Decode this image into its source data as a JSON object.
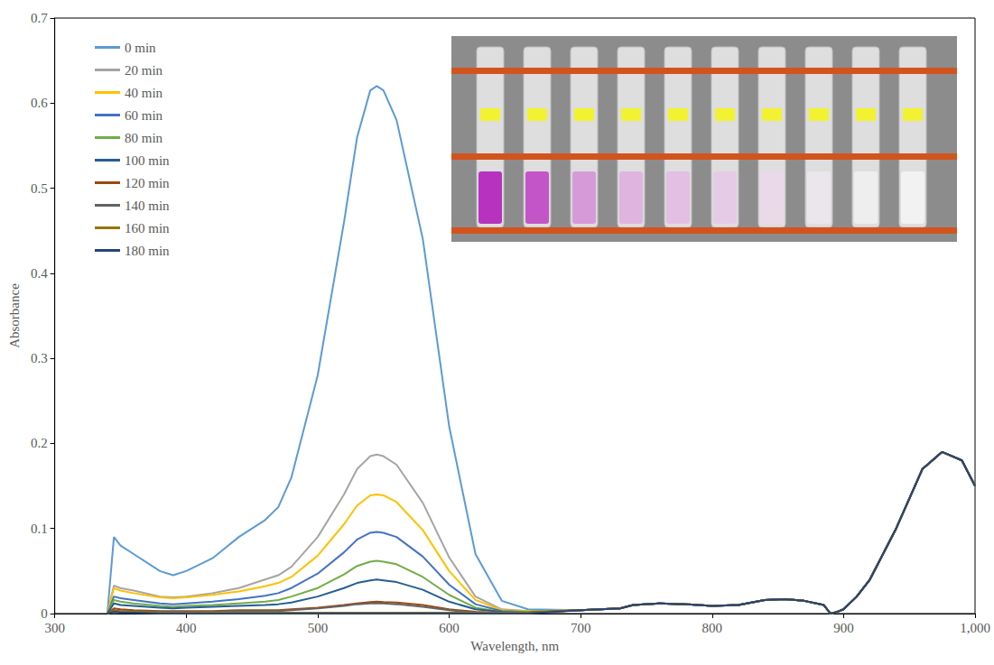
{
  "chart_data": {
    "type": "line",
    "x_label": "Wavelength, nm",
    "y_label": "Absorbance",
    "xlim": [
      300,
      1000
    ],
    "ylim": [
      0,
      0.7
    ],
    "xticks": [
      300,
      400,
      500,
      600,
      700,
      800,
      900,
      1000
    ],
    "yticks": [
      0,
      0.1,
      0.2,
      0.3,
      0.4,
      0.5,
      0.6,
      0.7
    ],
    "grid": false,
    "legend": "upper left",
    "x": [
      340,
      345,
      350,
      360,
      380,
      390,
      400,
      420,
      440,
      460,
      470,
      480,
      500,
      520,
      530,
      540,
      545,
      550,
      560,
      580,
      600,
      620,
      640,
      660,
      700,
      730,
      740,
      760,
      780,
      800,
      820,
      840,
      855,
      870,
      885,
      890,
      895,
      900,
      910,
      920,
      940,
      960,
      975,
      990,
      1000
    ],
    "series": [
      {
        "name": "0 min",
        "color": "#5b9bd5",
        "values": [
          0,
          0.09,
          0.08,
          0.07,
          0.05,
          0.045,
          0.05,
          0.065,
          0.09,
          0.11,
          0.125,
          0.16,
          0.28,
          0.46,
          0.56,
          0.615,
          0.62,
          0.615,
          0.58,
          0.44,
          0.22,
          0.07,
          0.015,
          0.005,
          0.004,
          0.006,
          0.01,
          0.012,
          0.011,
          0.009,
          0.01,
          0.016,
          0.017,
          0.015,
          0.01,
          0,
          0.002,
          0.005,
          0.02,
          0.04,
          0.1,
          0.17,
          0.19,
          0.18,
          0.15
        ]
      },
      {
        "name": "20 min",
        "color": "#a5a5a5",
        "values": [
          0,
          0.033,
          0.03,
          0.027,
          0.02,
          0.019,
          0.02,
          0.024,
          0.03,
          0.04,
          0.045,
          0.055,
          0.09,
          0.14,
          0.17,
          0.185,
          0.187,
          0.185,
          0.175,
          0.13,
          0.066,
          0.02,
          0.005,
          0.003,
          0.004,
          0.006,
          0.01,
          0.012,
          0.011,
          0.009,
          0.01,
          0.016,
          0.017,
          0.015,
          0.01,
          0,
          0.002,
          0.005,
          0.02,
          0.04,
          0.1,
          0.17,
          0.19,
          0.18,
          0.15
        ]
      },
      {
        "name": "40 min",
        "color": "#ffc000",
        "values": [
          0,
          0.03,
          0.027,
          0.024,
          0.019,
          0.018,
          0.019,
          0.022,
          0.026,
          0.032,
          0.036,
          0.043,
          0.068,
          0.105,
          0.127,
          0.139,
          0.14,
          0.139,
          0.131,
          0.098,
          0.05,
          0.016,
          0.004,
          0.003,
          0.004,
          0.006,
          0.01,
          0.012,
          0.011,
          0.009,
          0.01,
          0.016,
          0.017,
          0.015,
          0.01,
          0,
          0.002,
          0.005,
          0.02,
          0.04,
          0.1,
          0.17,
          0.19,
          0.18,
          0.15
        ]
      },
      {
        "name": "60 min",
        "color": "#4472c4",
        "values": [
          0,
          0.02,
          0.018,
          0.016,
          0.012,
          0.011,
          0.012,
          0.014,
          0.017,
          0.021,
          0.024,
          0.03,
          0.047,
          0.072,
          0.087,
          0.095,
          0.096,
          0.095,
          0.09,
          0.067,
          0.034,
          0.011,
          0.003,
          0.002,
          0.004,
          0.006,
          0.01,
          0.012,
          0.011,
          0.009,
          0.01,
          0.016,
          0.017,
          0.015,
          0.01,
          0,
          0.002,
          0.005,
          0.02,
          0.04,
          0.1,
          0.17,
          0.19,
          0.18,
          0.15
        ]
      },
      {
        "name": "80 min",
        "color": "#70ad47",
        "values": [
          0,
          0.016,
          0.014,
          0.012,
          0.009,
          0.008,
          0.009,
          0.01,
          0.012,
          0.014,
          0.016,
          0.02,
          0.03,
          0.046,
          0.056,
          0.061,
          0.062,
          0.061,
          0.058,
          0.043,
          0.022,
          0.007,
          0.002,
          0.002,
          0.004,
          0.006,
          0.01,
          0.012,
          0.011,
          0.009,
          0.01,
          0.016,
          0.017,
          0.015,
          0.01,
          0,
          0.002,
          0.005,
          0.02,
          0.04,
          0.1,
          0.17,
          0.19,
          0.18,
          0.15
        ]
      },
      {
        "name": "100 min",
        "color": "#255e91",
        "values": [
          0,
          0.012,
          0.01,
          0.009,
          0.007,
          0.006,
          0.007,
          0.008,
          0.009,
          0.01,
          0.011,
          0.013,
          0.02,
          0.03,
          0.036,
          0.039,
          0.04,
          0.039,
          0.037,
          0.028,
          0.014,
          0.005,
          0.002,
          0.001,
          0.004,
          0.006,
          0.01,
          0.012,
          0.011,
          0.009,
          0.01,
          0.016,
          0.017,
          0.015,
          0.01,
          0,
          0.002,
          0.005,
          0.02,
          0.04,
          0.1,
          0.17,
          0.19,
          0.18,
          0.15
        ]
      },
      {
        "name": "120 min",
        "color": "#9e480e",
        "values": [
          0,
          0.006,
          0.005,
          0.004,
          0.003,
          0.003,
          0.003,
          0.003,
          0.004,
          0.004,
          0.004,
          0.005,
          0.007,
          0.01,
          0.012,
          0.0135,
          0.014,
          0.0135,
          0.013,
          0.01,
          0.005,
          0.002,
          0.001,
          0.001,
          0.004,
          0.006,
          0.01,
          0.012,
          0.011,
          0.009,
          0.01,
          0.016,
          0.017,
          0.015,
          0.01,
          0,
          0.002,
          0.005,
          0.02,
          0.04,
          0.1,
          0.17,
          0.19,
          0.18,
          0.15
        ]
      },
      {
        "name": "140 min",
        "color": "#636363",
        "values": [
          0,
          0.004,
          0.003,
          0.003,
          0.002,
          0.002,
          0.002,
          0.002,
          0.003,
          0.003,
          0.003,
          0.004,
          0.006,
          0.009,
          0.011,
          0.012,
          0.012,
          0.012,
          0.011,
          0.008,
          0.004,
          0.001,
          0.001,
          0.001,
          0.004,
          0.006,
          0.01,
          0.012,
          0.011,
          0.009,
          0.01,
          0.016,
          0.017,
          0.015,
          0.01,
          0,
          0.002,
          0.005,
          0.02,
          0.04,
          0.1,
          0.17,
          0.19,
          0.18,
          0.15
        ]
      },
      {
        "name": "160 min",
        "color": "#997300",
        "values": [
          0,
          0.003,
          0.002,
          0.002,
          0.001,
          0.001,
          0.001,
          0.001,
          0.001,
          0.001,
          0.001,
          0.001,
          0.001,
          0.001,
          0.001,
          0.001,
          0.001,
          0.001,
          0.001,
          0.001,
          0.001,
          0.001,
          0.001,
          0.001,
          0.004,
          0.006,
          0.01,
          0.012,
          0.011,
          0.009,
          0.01,
          0.016,
          0.017,
          0.015,
          0.01,
          0,
          0.002,
          0.005,
          0.02,
          0.04,
          0.1,
          0.17,
          0.19,
          0.18,
          0.15
        ]
      },
      {
        "name": "180 min",
        "color": "#264478",
        "values": [
          0,
          0.002,
          0.001,
          0.001,
          0,
          0,
          0,
          0,
          0,
          0,
          0,
          0,
          0,
          0,
          0,
          0,
          0,
          0,
          0,
          0,
          0,
          0,
          0,
          0,
          0.004,
          0.006,
          0.01,
          0.012,
          0.011,
          0.009,
          0.01,
          0.016,
          0.017,
          0.015,
          0.01,
          0,
          0.002,
          0.005,
          0.02,
          0.04,
          0.1,
          0.17,
          0.19,
          0.18,
          0.15
        ]
      }
    ]
  }
}
